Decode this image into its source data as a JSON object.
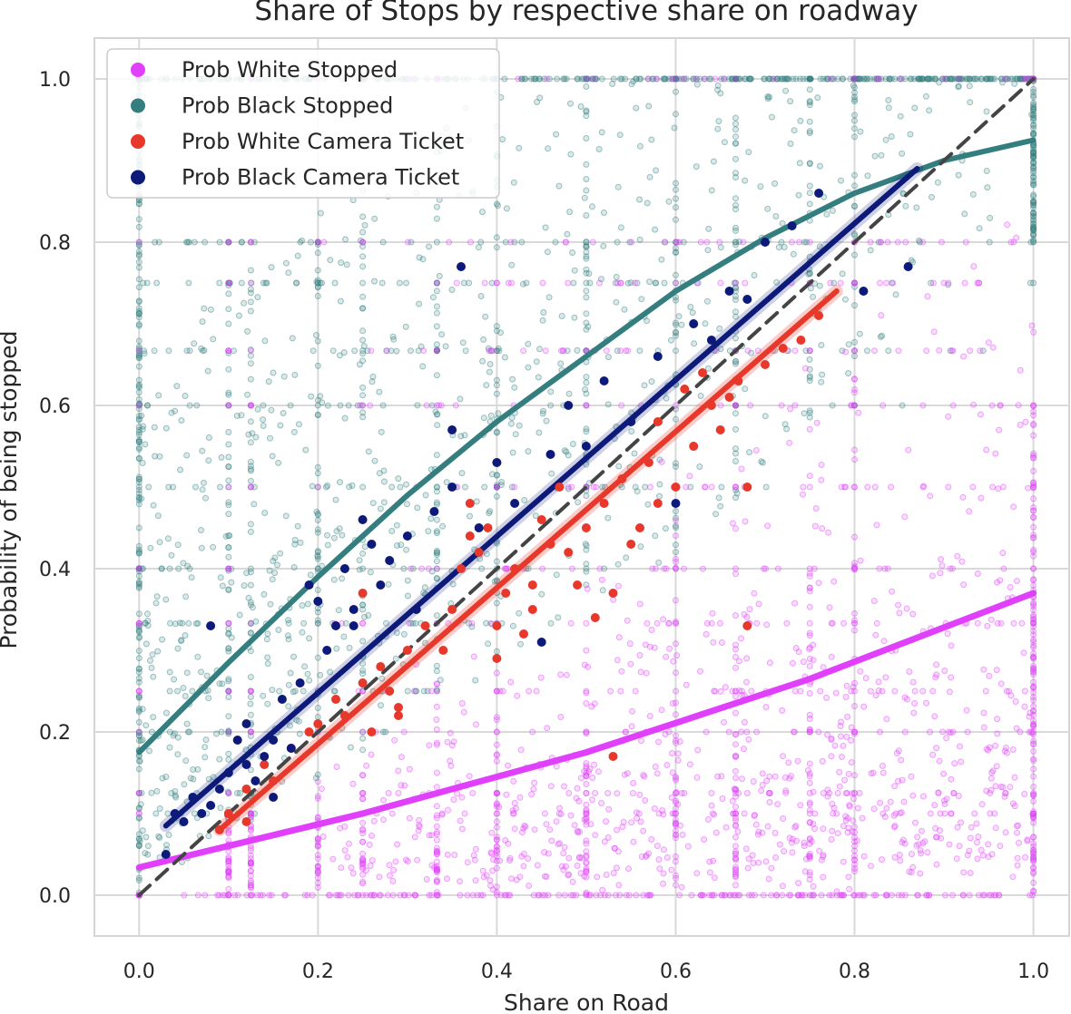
{
  "chart_data": {
    "type": "scatter",
    "title": "Share of Stops by respective share on roadway",
    "xlabel": "Share on Road",
    "ylabel": "Probability of being stopped",
    "xlim": [
      -0.05,
      1.04
    ],
    "ylim": [
      -0.05,
      1.05
    ],
    "xticks": [
      "0.0",
      "0.2",
      "0.4",
      "0.6",
      "0.8",
      "1.0"
    ],
    "yticks": [
      "0.0",
      "0.2",
      "0.4",
      "0.6",
      "0.8",
      "1.0"
    ],
    "grid": true,
    "legend_position": "top-left",
    "series": [
      {
        "name": "Prob White Stopped",
        "color": "#e040fb",
        "kind": "dense-scatter",
        "fit_line": [
          [
            0.0,
            0.034
          ],
          [
            0.25,
            0.1
          ],
          [
            0.5,
            0.175
          ],
          [
            0.75,
            0.265
          ],
          [
            1.0,
            0.37
          ]
        ]
      },
      {
        "name": "Prob Black Stopped",
        "color": "#347e7f",
        "kind": "dense-scatter",
        "fit_line": [
          [
            0.0,
            0.175
          ],
          [
            0.1,
            0.285
          ],
          [
            0.2,
            0.39
          ],
          [
            0.3,
            0.49
          ],
          [
            0.4,
            0.58
          ],
          [
            0.5,
            0.66
          ],
          [
            0.6,
            0.74
          ],
          [
            0.7,
            0.805
          ],
          [
            0.8,
            0.86
          ],
          [
            0.9,
            0.9
          ],
          [
            1.0,
            0.925
          ]
        ]
      },
      {
        "name": "Prob White Camera Ticket",
        "color": "#e8382b",
        "kind": "scatter",
        "points": [
          [
            0.09,
            0.08
          ],
          [
            0.1,
            0.1
          ],
          [
            0.12,
            0.13
          ],
          [
            0.14,
            0.16
          ],
          [
            0.15,
            0.14
          ],
          [
            0.17,
            0.18
          ],
          [
            0.19,
            0.2
          ],
          [
            0.2,
            0.21
          ],
          [
            0.22,
            0.24
          ],
          [
            0.23,
            0.22
          ],
          [
            0.25,
            0.26
          ],
          [
            0.25,
            0.37
          ],
          [
            0.26,
            0.2
          ],
          [
            0.27,
            0.28
          ],
          [
            0.28,
            0.25
          ],
          [
            0.29,
            0.23
          ],
          [
            0.3,
            0.3
          ],
          [
            0.32,
            0.33
          ],
          [
            0.34,
            0.3
          ],
          [
            0.35,
            0.35
          ],
          [
            0.36,
            0.4
          ],
          [
            0.37,
            0.48
          ],
          [
            0.38,
            0.42
          ],
          [
            0.39,
            0.45
          ],
          [
            0.4,
            0.29
          ],
          [
            0.4,
            0.33
          ],
          [
            0.41,
            0.37
          ],
          [
            0.42,
            0.4
          ],
          [
            0.43,
            0.32
          ],
          [
            0.44,
            0.35
          ],
          [
            0.45,
            0.46
          ],
          [
            0.46,
            0.43
          ],
          [
            0.47,
            0.5
          ],
          [
            0.48,
            0.42
          ],
          [
            0.49,
            0.38
          ],
          [
            0.5,
            0.45
          ],
          [
            0.51,
            0.34
          ],
          [
            0.52,
            0.48
          ],
          [
            0.53,
            0.37
          ],
          [
            0.54,
            0.51
          ],
          [
            0.55,
            0.43
          ],
          [
            0.56,
            0.45
          ],
          [
            0.57,
            0.53
          ],
          [
            0.58,
            0.48
          ],
          [
            0.58,
            0.58
          ],
          [
            0.6,
            0.5
          ],
          [
            0.61,
            0.62
          ],
          [
            0.62,
            0.55
          ],
          [
            0.63,
            0.64
          ],
          [
            0.64,
            0.6
          ],
          [
            0.65,
            0.57
          ],
          [
            0.66,
            0.61
          ],
          [
            0.67,
            0.63
          ],
          [
            0.68,
            0.5
          ],
          [
            0.68,
            0.33
          ],
          [
            0.7,
            0.65
          ],
          [
            0.72,
            0.67
          ],
          [
            0.74,
            0.68
          ],
          [
            0.76,
            0.71
          ],
          [
            0.53,
            0.17
          ],
          [
            0.12,
            0.09
          ],
          [
            0.29,
            0.22
          ],
          [
            0.37,
            0.44
          ],
          [
            0.44,
            0.38
          ]
        ],
        "fit_line": [
          [
            0.09,
            0.08
          ],
          [
            0.78,
            0.74
          ]
        ]
      },
      {
        "name": "Prob Black Camera Ticket",
        "color": "#0d1a7a",
        "kind": "scatter",
        "points": [
          [
            0.03,
            0.05
          ],
          [
            0.04,
            0.1
          ],
          [
            0.05,
            0.09
          ],
          [
            0.06,
            0.12
          ],
          [
            0.07,
            0.1
          ],
          [
            0.08,
            0.33
          ],
          [
            0.08,
            0.11
          ],
          [
            0.09,
            0.13
          ],
          [
            0.1,
            0.15
          ],
          [
            0.11,
            0.19
          ],
          [
            0.12,
            0.21
          ],
          [
            0.13,
            0.14
          ],
          [
            0.14,
            0.17
          ],
          [
            0.15,
            0.19
          ],
          [
            0.15,
            0.12
          ],
          [
            0.16,
            0.24
          ],
          [
            0.17,
            0.18
          ],
          [
            0.18,
            0.26
          ],
          [
            0.19,
            0.38
          ],
          [
            0.2,
            0.36
          ],
          [
            0.21,
            0.3
          ],
          [
            0.22,
            0.33
          ],
          [
            0.23,
            0.4
          ],
          [
            0.24,
            0.35
          ],
          [
            0.25,
            0.46
          ],
          [
            0.26,
            0.43
          ],
          [
            0.27,
            0.38
          ],
          [
            0.28,
            0.41
          ],
          [
            0.3,
            0.44
          ],
          [
            0.31,
            0.35
          ],
          [
            0.33,
            0.47
          ],
          [
            0.35,
            0.5
          ],
          [
            0.35,
            0.57
          ],
          [
            0.36,
            0.77
          ],
          [
            0.38,
            0.45
          ],
          [
            0.4,
            0.53
          ],
          [
            0.42,
            0.48
          ],
          [
            0.45,
            0.31
          ],
          [
            0.46,
            0.54
          ],
          [
            0.48,
            0.6
          ],
          [
            0.5,
            0.55
          ],
          [
            0.52,
            0.63
          ],
          [
            0.55,
            0.58
          ],
          [
            0.58,
            0.66
          ],
          [
            0.6,
            0.48
          ],
          [
            0.62,
            0.7
          ],
          [
            0.64,
            0.68
          ],
          [
            0.66,
            0.74
          ],
          [
            0.68,
            0.73
          ],
          [
            0.7,
            0.8
          ],
          [
            0.73,
            0.82
          ],
          [
            0.76,
            0.86
          ],
          [
            0.81,
            0.74
          ],
          [
            0.86,
            0.77
          ],
          [
            0.24,
            0.33
          ],
          [
            0.12,
            0.16
          ]
        ],
        "fit_line": [
          [
            0.03,
            0.085
          ],
          [
            0.87,
            0.89
          ]
        ]
      }
    ],
    "reference_line": {
      "style": "dashed",
      "color": "#444444",
      "points": [
        [
          0.0,
          0.0
        ],
        [
          1.0,
          1.0
        ]
      ]
    }
  }
}
